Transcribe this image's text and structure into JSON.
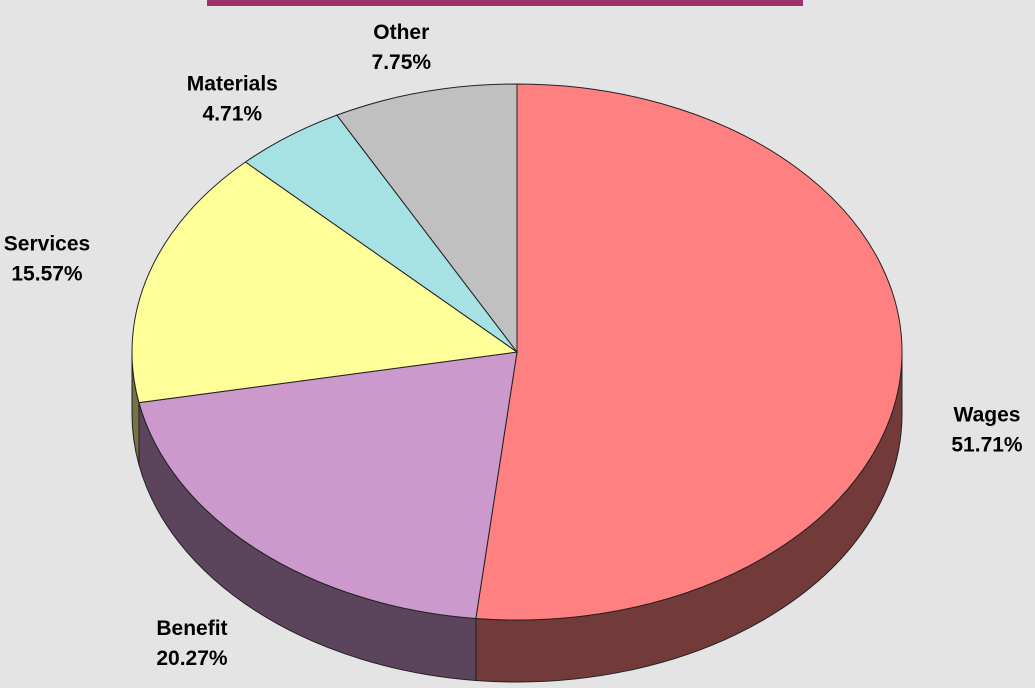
{
  "chart_data": {
    "type": "pie",
    "categories": [
      "Wages",
      "Benefit",
      "Services",
      "Materials",
      "Other"
    ],
    "values": [
      51.71,
      20.27,
      15.57,
      4.71,
      7.75
    ],
    "value_labels": [
      "51.71%",
      "20.27%",
      "15.57%",
      "4.71%",
      "7.75%"
    ],
    "colors": [
      "#ff8080",
      "#cc99cc",
      "#ffff99",
      "#a6e1e3",
      "#c0c0c0"
    ],
    "three_d": true
  }
}
